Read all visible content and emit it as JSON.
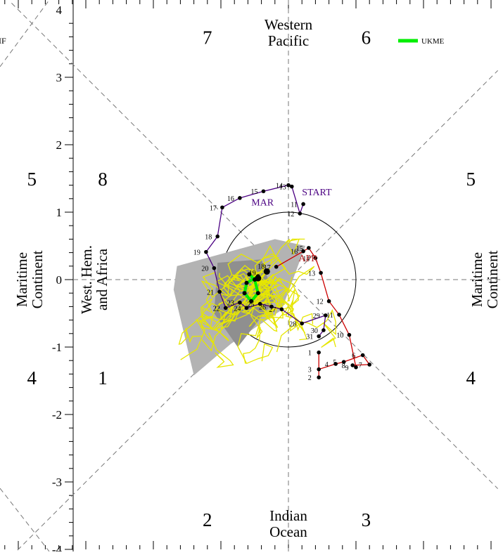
{
  "chart_data": {
    "type": "scatter",
    "title": "",
    "xlabel": "",
    "ylabel": "",
    "xlim": [
      -4,
      3.2
    ],
    "ylim": [
      -4,
      4
    ],
    "y_tick_labels": [
      "4",
      "3",
      "2",
      "1",
      "0",
      "-1",
      "-2",
      "-3",
      "-4"
    ],
    "phase_numbers": [
      {
        "label": "7",
        "x": -1.2,
        "y": 3.6
      },
      {
        "label": "6",
        "x": 1.15,
        "y": 3.6
      },
      {
        "label": "5",
        "x": -3.8,
        "y": 1.5
      },
      {
        "label": "8",
        "x": -2.75,
        "y": 1.5
      },
      {
        "label": "5",
        "x": 2.7,
        "y": 1.5
      },
      {
        "label": "4",
        "x": -3.8,
        "y": -1.45
      },
      {
        "label": "1",
        "x": -2.75,
        "y": -1.45
      },
      {
        "label": "4",
        "x": 2.7,
        "y": -1.45
      },
      {
        "label": "2",
        "x": -1.2,
        "y": -3.55
      },
      {
        "label": "3",
        "x": 1.15,
        "y": -3.55
      }
    ],
    "region_labels": {
      "western_pacific": [
        "Western",
        "Pacific"
      ],
      "indian_ocean": [
        "Indian",
        "Ocean"
      ],
      "west_hem": [
        "West. Hem.",
        "and Africa"
      ],
      "maritime_left": [
        "Maritime",
        "Continent"
      ],
      "maritime_right": [
        "Maritime",
        "Continent"
      ]
    },
    "partial_text_top_left": "IF",
    "legend": {
      "name": "UKME",
      "color": "#00ee00",
      "position": "top-right"
    },
    "month_labels": [
      {
        "text": "MAR",
        "x": -0.55,
        "y": 1.1,
        "color": "#4b0082"
      },
      {
        "text": "START",
        "x": 0.2,
        "y": 1.25,
        "color": "#4b0082"
      },
      {
        "text": "APR",
        "x": 0.15,
        "y": 0.27,
        "color": "#b22222"
      }
    ],
    "series": [
      {
        "name": "MAR",
        "color": "#4b0082",
        "points": [
          {
            "day": "11",
            "x": 0.22,
            "y": 1.12
          },
          {
            "day": "12",
            "x": 0.17,
            "y": 0.98
          },
          {
            "day": "13",
            "x": 0.05,
            "y": 1.38
          },
          {
            "day": "14",
            "x": 0.0,
            "y": 1.4
          },
          {
            "day": "15",
            "x": -0.37,
            "y": 1.31
          },
          {
            "day": "16",
            "x": -0.72,
            "y": 1.21
          },
          {
            "day": "17",
            "x": -0.98,
            "y": 1.07
          },
          {
            "day": "18",
            "x": -1.05,
            "y": 0.64
          },
          {
            "day": "19",
            "x": -1.22,
            "y": 0.41
          },
          {
            "day": "20",
            "x": -1.1,
            "y": 0.17
          },
          {
            "day": "21",
            "x": -1.02,
            "y": -0.18
          },
          {
            "day": "22",
            "x": -0.93,
            "y": -0.42
          },
          {
            "day": "23",
            "x": -0.72,
            "y": -0.34
          },
          {
            "day": "24",
            "x": -0.62,
            "y": -0.42
          },
          {
            "day": "25",
            "x": -0.42,
            "y": -0.36
          },
          {
            "day": "26",
            "x": -0.25,
            "y": -0.4
          },
          {
            "day": "27",
            "x": -0.1,
            "y": -0.44
          },
          {
            "day": "28",
            "x": 0.2,
            "y": -0.65
          },
          {
            "day": "29",
            "x": 0.55,
            "y": -0.53
          },
          {
            "day": "30",
            "x": 0.52,
            "y": -0.75
          },
          {
            "day": "31",
            "x": 0.45,
            "y": -0.84
          }
        ]
      },
      {
        "name": "APR",
        "color": "#cc0000",
        "points": [
          {
            "day": "1",
            "x": 0.45,
            "y": -1.08
          },
          {
            "day": "2",
            "x": 0.45,
            "y": -1.45
          },
          {
            "day": "3",
            "x": 0.45,
            "y": -1.33
          },
          {
            "day": "4",
            "x": 0.7,
            "y": -1.25
          },
          {
            "day": "5",
            "x": 0.82,
            "y": -1.22
          },
          {
            "day": "6",
            "x": 1.1,
            "y": -1.12
          },
          {
            "day": "7",
            "x": 1.2,
            "y": -1.26
          },
          {
            "day": "8",
            "x": 0.95,
            "y": -1.27
          },
          {
            "day": "9",
            "x": 1.0,
            "y": -1.3
          },
          {
            "day": "10",
            "x": 0.9,
            "y": -0.82
          },
          {
            "day": "11",
            "x": 0.75,
            "y": -0.52
          },
          {
            "day": "12",
            "x": 0.6,
            "y": -0.32
          },
          {
            "day": "13",
            "x": 0.48,
            "y": 0.1
          },
          {
            "day": "14",
            "x": 0.4,
            "y": 0.32
          },
          {
            "day": "15",
            "x": 0.3,
            "y": 0.47
          },
          {
            "day": "16",
            "x": 0.22,
            "y": 0.42
          },
          {
            "day": "17",
            "x": -0.18,
            "y": 0.19
          }
        ]
      }
    ],
    "forecast_points": [
      {
        "day": "18",
        "x": -0.32,
        "y": 0.12
      },
      {
        "day": "19",
        "x": -0.45,
        "y": 0.02
      }
    ]
  }
}
